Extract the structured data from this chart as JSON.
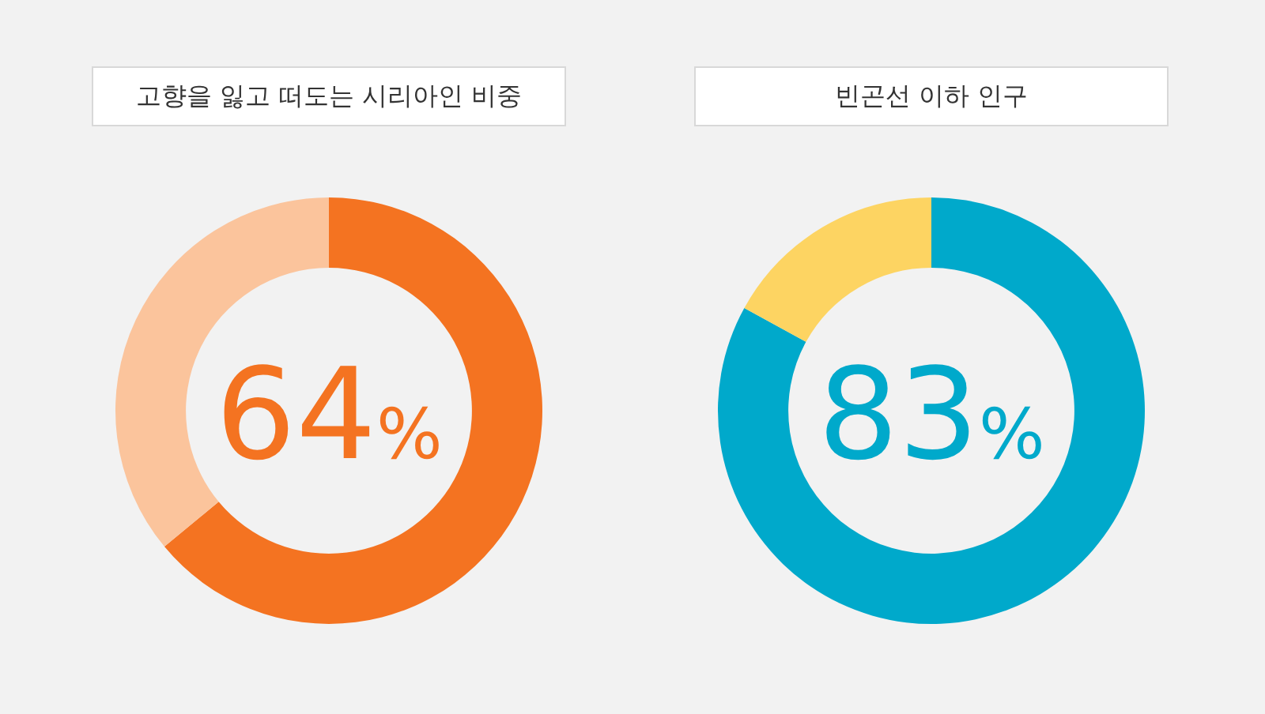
{
  "chart_data": [
    {
      "type": "donut",
      "title": "고향을 잃고 떠도는 시리아인 비중",
      "categories": [
        null,
        null
      ],
      "values": [
        64,
        36
      ],
      "colors": [
        "#f47321",
        "#fbc49c"
      ],
      "value_labels": [
        "64%",
        null
      ]
    },
    {
      "type": "donut",
      "title": "빈곤선 이하 인구",
      "categories": [
        null,
        null
      ],
      "values": [
        83,
        17
      ],
      "colors": [
        "#00a9cb",
        "#fdd462"
      ],
      "value_labels": [
        "83%",
        null
      ]
    }
  ]
}
